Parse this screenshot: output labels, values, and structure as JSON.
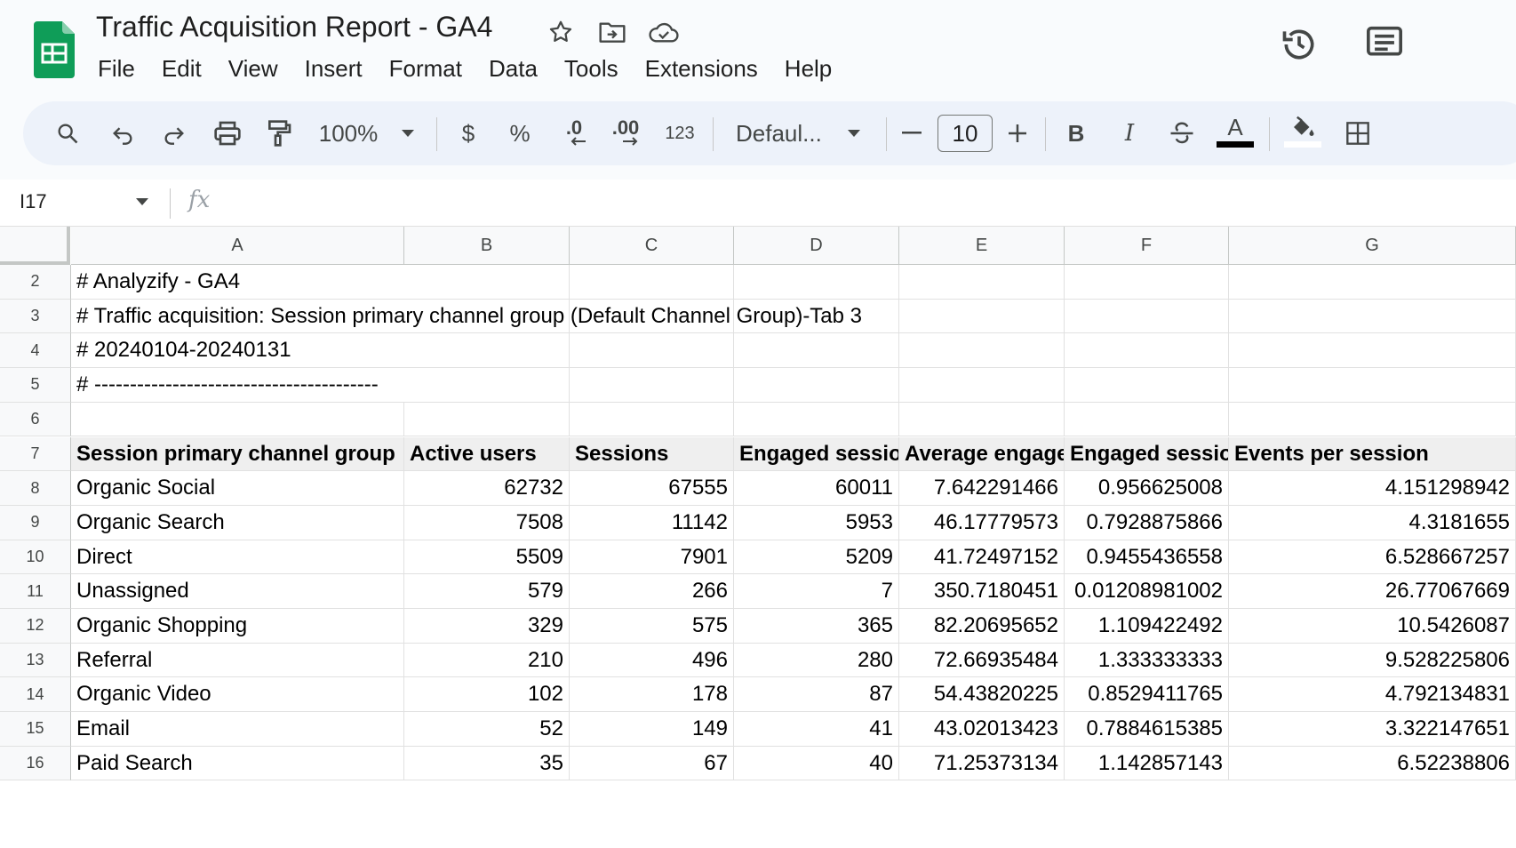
{
  "app": {
    "title": "Traffic Acquisition Report - GA4",
    "menu": [
      "File",
      "Edit",
      "View",
      "Insert",
      "Format",
      "Data",
      "Tools",
      "Extensions",
      "Help"
    ]
  },
  "toolbar": {
    "zoom": "100%",
    "currency": "$",
    "percent": "%",
    "decrease_decimal": ".0",
    "increase_decimal": ".00",
    "number_format": "123",
    "font": "Defaul...",
    "font_size": "10",
    "bold": "B",
    "italic": "I",
    "text_color_letter": "A"
  },
  "formula_bar": {
    "name_box": "I17",
    "fx": "fx",
    "value": ""
  },
  "columns": [
    "A",
    "B",
    "C",
    "D",
    "E",
    "F",
    "G"
  ],
  "rows": [
    {
      "num": "2",
      "cells": [
        "# Analyzify - GA4",
        "",
        "",
        "",
        "",
        "",
        ""
      ]
    },
    {
      "num": "3",
      "cells": [
        "# Traffic acquisition: Session primary channel group (Default Channel Group)-Tab 3",
        "",
        "",
        "",
        "",
        "",
        ""
      ]
    },
    {
      "num": "4",
      "cells": [
        "# 20240104-20240131",
        "",
        "",
        "",
        "",
        "",
        ""
      ]
    },
    {
      "num": "5",
      "cells": [
        "# ----------------------------------------",
        "",
        "",
        "",
        "",
        "",
        ""
      ]
    },
    {
      "num": "6",
      "cells": [
        "",
        "",
        "",
        "",
        "",
        "",
        ""
      ]
    },
    {
      "num": "7",
      "cells": [
        "Session primary channel group",
        "Active users",
        "Sessions",
        "Engaged sessions",
        "Average engagement time per session",
        "Engaged sessions per active user",
        "Events per session"
      ]
    },
    {
      "num": "8",
      "cells": [
        "Organic Social",
        "62732",
        "67555",
        "60011",
        "7.642291466",
        "0.956625008",
        "4.151298942"
      ]
    },
    {
      "num": "9",
      "cells": [
        "Organic Search",
        "7508",
        "11142",
        "5953",
        "46.17779573",
        "0.7928875866",
        "4.3181655"
      ]
    },
    {
      "num": "10",
      "cells": [
        "Direct",
        "5509",
        "7901",
        "5209",
        "41.72497152",
        "0.9455436558",
        "6.528667257"
      ]
    },
    {
      "num": "11",
      "cells": [
        "Unassigned",
        "579",
        "266",
        "7",
        "350.7180451",
        "0.01208981002",
        "26.77067669"
      ]
    },
    {
      "num": "12",
      "cells": [
        "Organic Shopping",
        "329",
        "575",
        "365",
        "82.20695652",
        "1.109422492",
        "10.5426087"
      ]
    },
    {
      "num": "13",
      "cells": [
        "Referral",
        "210",
        "496",
        "280",
        "72.66935484",
        "1.333333333",
        "9.528225806"
      ]
    },
    {
      "num": "14",
      "cells": [
        "Organic Video",
        "102",
        "178",
        "87",
        "54.43820225",
        "0.8529411765",
        "4.792134831"
      ]
    },
    {
      "num": "15",
      "cells": [
        "Email",
        "52",
        "149",
        "41",
        "43.02013423",
        "0.7884615385",
        "3.322147651"
      ]
    },
    {
      "num": "16",
      "cells": [
        "Paid Search",
        "35",
        "67",
        "40",
        "71.25373134",
        "1.142857143",
        "6.52238806"
      ]
    }
  ]
}
